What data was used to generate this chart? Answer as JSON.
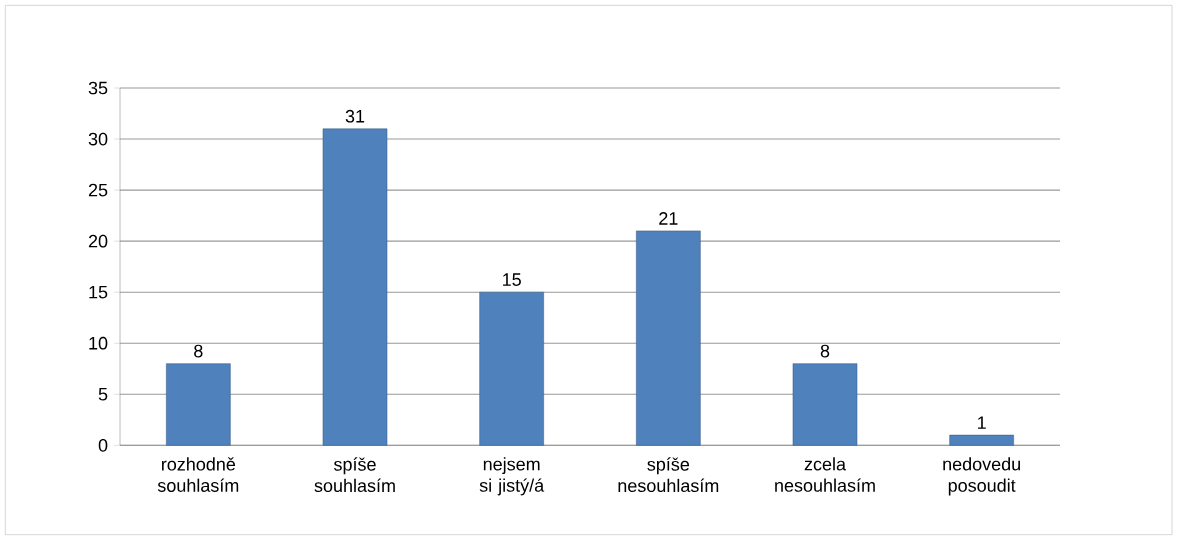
{
  "chart_data": {
    "type": "bar",
    "categories": [
      "rozhodně souhlasím",
      "spíše souhlasím",
      "nejsem si jistý/á",
      "spíše nesouhlasím",
      "zcela nesouhlasím",
      "nedovedu posoudit"
    ],
    "values": [
      8,
      31,
      15,
      21,
      8,
      1
    ],
    "color": "#4f81bd",
    "ylim": [
      0,
      35
    ],
    "yticks": [
      0,
      5,
      10,
      15,
      20,
      25,
      30,
      35
    ],
    "grid": "y",
    "data_labels": true
  }
}
